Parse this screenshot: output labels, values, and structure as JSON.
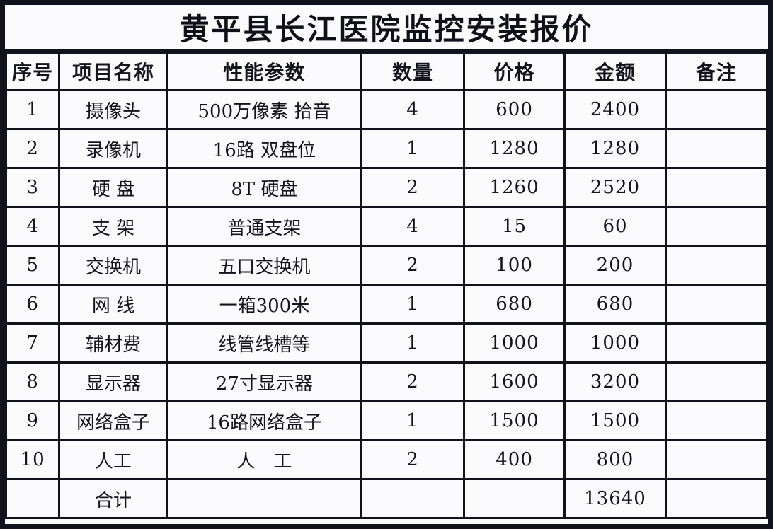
{
  "title": "黄平县长江医院监控安装报价",
  "table": {
    "headers": [
      "序号",
      "项目名称",
      "性能参数",
      "数量",
      "价格",
      "金额",
      "备注"
    ],
    "rows": [
      {
        "no": "1",
        "name": "摄像头",
        "spec": "500万像素 拾音",
        "qty": "4",
        "price": "600",
        "amount": "2400",
        "note": ""
      },
      {
        "no": "2",
        "name": "录像机",
        "spec": "16路 双盘位",
        "qty": "1",
        "price": "1280",
        "amount": "1280",
        "note": ""
      },
      {
        "no": "3",
        "name": "硬 盘",
        "spec": "8T 硬盘",
        "qty": "2",
        "price": "1260",
        "amount": "2520",
        "note": ""
      },
      {
        "no": "4",
        "name": "支 架",
        "spec": "普通支架",
        "qty": "4",
        "price": "15",
        "amount": "60",
        "note": ""
      },
      {
        "no": "5",
        "name": "交换机",
        "spec": "五口交换机",
        "qty": "2",
        "price": "100",
        "amount": "200",
        "note": ""
      },
      {
        "no": "6",
        "name": "网 线",
        "spec": "一箱300米",
        "qty": "1",
        "price": "680",
        "amount": "680",
        "note": ""
      },
      {
        "no": "7",
        "name": "辅材费",
        "spec": "线管线槽等",
        "qty": "1",
        "price": "1000",
        "amount": "1000",
        "note": ""
      },
      {
        "no": "8",
        "name": "显示器",
        "spec": "27寸显示器",
        "qty": "2",
        "price": "1600",
        "amount": "3200",
        "note": ""
      },
      {
        "no": "9",
        "name": "网络盒子",
        "spec": "16路网络盒子",
        "qty": "1",
        "price": "1500",
        "amount": "1500",
        "note": ""
      },
      {
        "no": "10",
        "name": "人工",
        "spec": "人　工",
        "qty": "2",
        "price": "400",
        "amount": "800",
        "note": ""
      }
    ],
    "total_row": {
      "label": "合计",
      "amount": "13640"
    }
  },
  "colors": {
    "border": "#12121c",
    "cell_background": "#fbfbfd",
    "text": "#14141c"
  }
}
